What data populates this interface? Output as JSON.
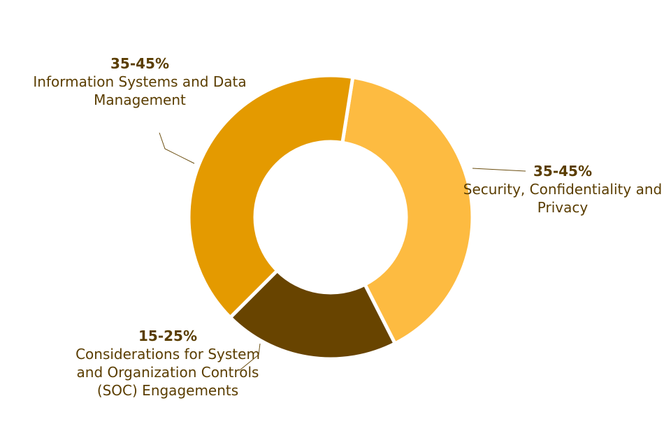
{
  "chart_data": {
    "type": "pie",
    "donut": true,
    "slices": [
      {
        "range": "35-45%",
        "label": "Information Systems and Data Management",
        "value": 40,
        "color": "#e49a00"
      },
      {
        "range": "35-45%",
        "label": "Security, Confidentiality and Privacy",
        "value": 40,
        "color": "#fdbb41"
      },
      {
        "range": "15-25%",
        "label": "Considerations for System and Organization Controls (SOC) Engagements",
        "value": 20,
        "color": "#684400"
      }
    ]
  }
}
